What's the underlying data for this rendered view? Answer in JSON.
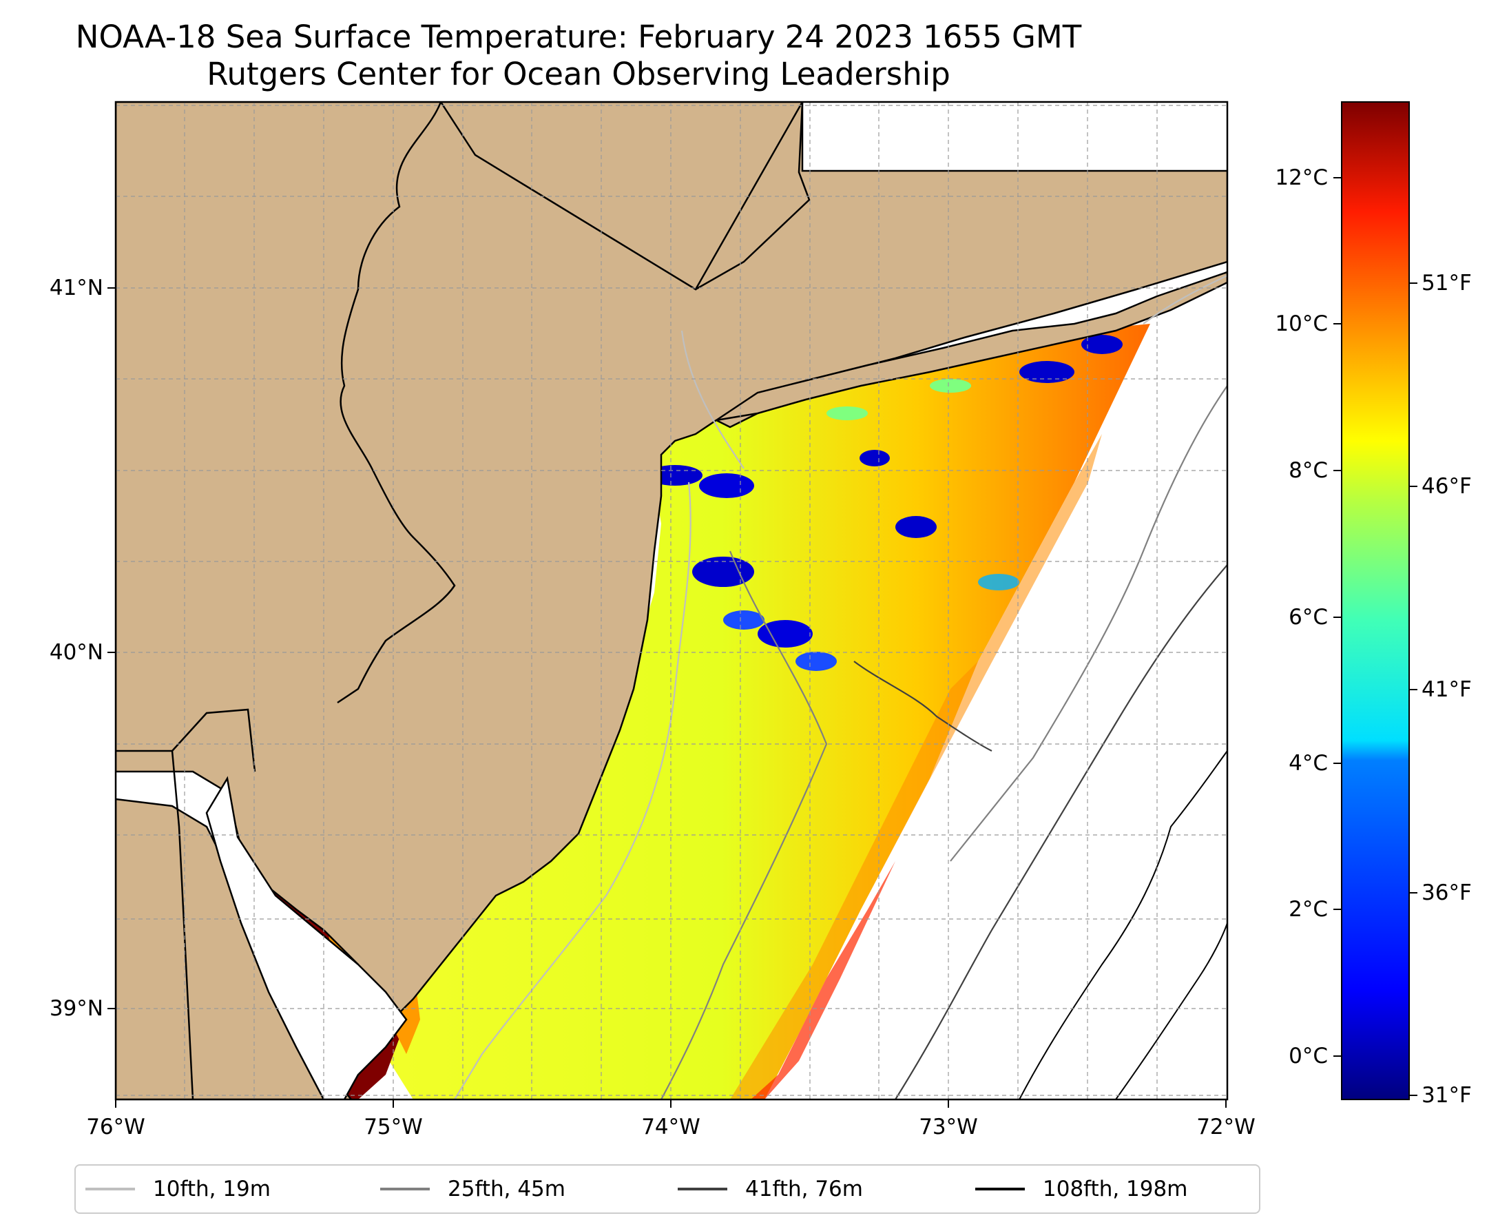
{
  "title": {
    "line1": "NOAA-18 Sea Surface Temperature: February 24 2023 1655 GMT",
    "line2": "Rutgers Center for Ocean Observing Leadership"
  },
  "axes": {
    "x_ticks": [
      "76°W",
      "75°W",
      "74°W",
      "73°W",
      "72°W"
    ],
    "y_ticks": [
      "41°N",
      "40°N",
      "39°N"
    ]
  },
  "colorbar": {
    "celsius_ticks": [
      "12°C",
      "10°C",
      "8°C",
      "6°C",
      "4°C",
      "2°C",
      "0°C"
    ],
    "fahrenheit_ticks": [
      "51°F",
      "46°F",
      "41°F",
      "36°F",
      "31°F"
    ],
    "colormap": [
      "#00007f",
      "#0000ff",
      "#007fff",
      "#00ffff",
      "#7fff7f",
      "#ffff00",
      "#ff7f00",
      "#ff0000",
      "#7f0000"
    ]
  },
  "legend": {
    "entries": [
      {
        "label": "10fth, 19m",
        "color": "#bfbfbf"
      },
      {
        "label": "25fth, 45m",
        "color": "#808080"
      },
      {
        "label": "41fth, 76m",
        "color": "#404040"
      },
      {
        "label": "108fth, 198m",
        "color": "#000000"
      }
    ]
  },
  "colors": {
    "land": "#d2b48c",
    "ocean": "#ffffff"
  }
}
